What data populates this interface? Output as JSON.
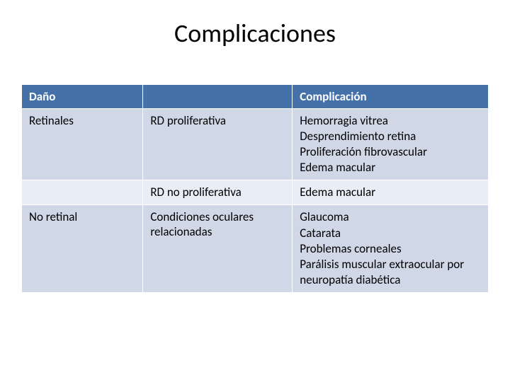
{
  "title": "Complicaciones",
  "table": {
    "headers": [
      "Daño",
      "",
      "Complicación"
    ],
    "rows": [
      {
        "shade": "light",
        "cells": [
          "Retinales",
          "RD proliferativa",
          "Hemorragia vitrea\nDesprendimiento retina\nProliferación fibrovascular\nEdema macular"
        ]
      },
      {
        "shade": "lighter",
        "cells": [
          "",
          "RD no proliferativa",
          "Edema macular"
        ]
      },
      {
        "shade": "light",
        "cells": [
          "No retinal",
          "Condiciones oculares relacionadas",
          "Glaucoma\nCatarata\nProblemas corneales\nParálisis muscular extraocular por neuropatía diabética"
        ]
      }
    ]
  }
}
